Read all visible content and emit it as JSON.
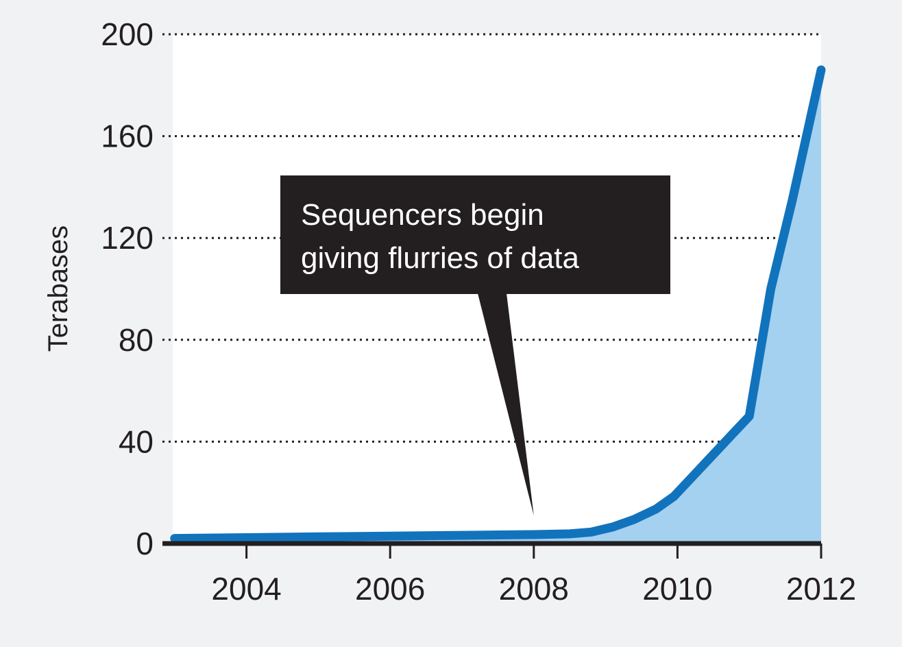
{
  "chart_data": {
    "type": "area",
    "title": "",
    "xlabel": "",
    "ylabel": "Terabases",
    "xlim": [
      2003,
      2012
    ],
    "ylim": [
      0,
      200
    ],
    "x_ticks": [
      2004,
      2006,
      2008,
      2010,
      2012
    ],
    "x_tick_labels": [
      "2004",
      "2006",
      "2008",
      "2010",
      "2012"
    ],
    "y_ticks": [
      0,
      40,
      80,
      120,
      160,
      200
    ],
    "y_tick_labels": [
      "0",
      "40",
      "80",
      "120",
      "160",
      "200"
    ],
    "grid": "horizontal-dotted",
    "legend": "none",
    "series": [
      {
        "x": [
          2003.0,
          2004.0,
          2005.0,
          2006.0,
          2007.0,
          2008.0,
          2008.5,
          2008.8,
          2009.1,
          2009.4,
          2009.7,
          2009.95,
          2010.2,
          2010.5,
          2010.8,
          2011.0,
          2011.3,
          2011.6,
          2012.0
        ],
        "y": [
          2,
          2.3,
          2.6,
          2.9,
          3.2,
          3.5,
          3.8,
          4.5,
          6.5,
          9.5,
          13.5,
          18.5,
          26,
          35,
          44,
          50,
          100,
          135,
          186
        ],
        "line_color": "#1273bd",
        "fill_color": "#a4d1ef"
      }
    ],
    "annotations": [
      {
        "lines": [
          "Sequencers begin",
          "giving flurries of data"
        ],
        "points_to": {
          "x": 2008,
          "y": 11
        },
        "box_color": "#231f20",
        "text_color": "#ffffff"
      }
    ],
    "colors": {
      "background": "#f1f2f4",
      "plot_background": "#ffffff",
      "axis": "#231f20",
      "grid": "#231f20",
      "text": "#231f20"
    }
  }
}
